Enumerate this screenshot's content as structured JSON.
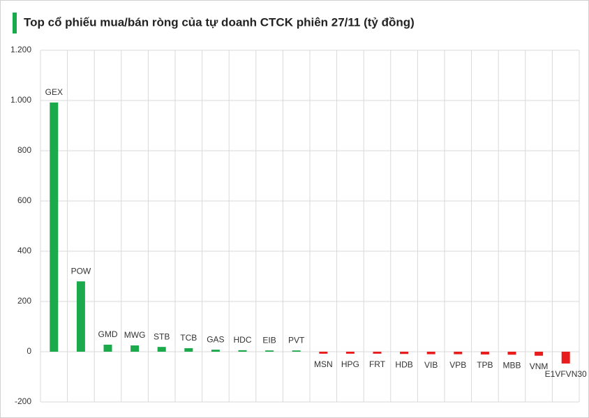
{
  "chart_data": {
    "type": "bar",
    "title": "Top cổ phiếu mua/bán ròng của tự doanh CTCK phiên 27/11 (tỷ đồng)",
    "categories": [
      "GEX",
      "POW",
      "GMD",
      "MWG",
      "STB",
      "TCB",
      "GAS",
      "HDC",
      "EIB",
      "PVT",
      "MSN",
      "HPG",
      "FRT",
      "HDB",
      "VIB",
      "VPB",
      "TPB",
      "MBB",
      "VNM",
      "E1VFVN30"
    ],
    "values": [
      992,
      280,
      28,
      25,
      19,
      14,
      8,
      6,
      5,
      5,
      -8,
      -8,
      -8,
      -9,
      -10,
      -10,
      -11,
      -12,
      -16,
      -47
    ],
    "positive_color": "#1aaa4b",
    "negative_color": "#e81c1c",
    "ylim": [
      -200,
      1200
    ],
    "yticks": [
      -200,
      0,
      200,
      400,
      600,
      800,
      {
        "value": 1000,
        "label": "1.000"
      },
      {
        "value": 1200,
        "label": "1.200"
      }
    ],
    "grid": true
  }
}
